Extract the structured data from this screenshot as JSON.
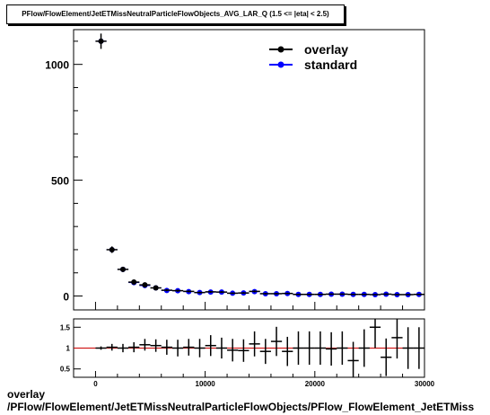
{
  "title": "PFlow/FlowElement/JetETMissNeutralParticleFlowObjects_AVG_LAR_Q (1.5 <= |eta| < 2.5)",
  "xlabel_line1": "overlay",
  "xlabel_line2": "/PFlow/FlowElement/JetETMissNeutralParticleFlowObjects/PFlow_FlowElement_JetETMiss",
  "colors": {
    "overlay": "#000000",
    "standard": "#0000ff",
    "ratio_line": "#cc0000"
  },
  "chart_data": [
    {
      "type": "scatter",
      "title": "PFlow/FlowElement/JetETMissNeutralParticleFlowObjects_AVG_LAR_Q (1.5 <= |eta| < 2.5)",
      "xlim": [
        -2000,
        30000
      ],
      "ylim": [
        -60,
        1150
      ],
      "xticks": [
        0,
        10000,
        20000,
        30000
      ],
      "yticks": [
        0,
        500,
        1000
      ],
      "legend_position": "top-right",
      "bin_width": 1000,
      "x": [
        500,
        1500,
        2500,
        3500,
        4500,
        5500,
        6500,
        7500,
        8500,
        9500,
        10500,
        11500,
        12500,
        13500,
        14500,
        15500,
        16500,
        17500,
        18500,
        19500,
        20500,
        21500,
        22500,
        23500,
        24500,
        25500,
        26500,
        27500,
        28500,
        29500
      ],
      "series": [
        {
          "name": "overlay",
          "values": [
            1100,
            200,
            115,
            60,
            48,
            35,
            25,
            23,
            20,
            15,
            18,
            17,
            12,
            13,
            20,
            10,
            10,
            11,
            7,
            7,
            7,
            8,
            8,
            7,
            7,
            6,
            8,
            6,
            6,
            7
          ],
          "errors": [
            33,
            14,
            11,
            8,
            7,
            6,
            5,
            5,
            4.5,
            4,
            4.2,
            4.1,
            3.5,
            3.6,
            4.5,
            3.2,
            3.2,
            3.3,
            2.6,
            2.6,
            2.6,
            2.8,
            2.8,
            2.6,
            2.6,
            2.4,
            2.8,
            2.4,
            2.4,
            2.6
          ]
        },
        {
          "name": "standard",
          "values": [
            1100,
            200,
            115,
            58,
            45,
            35,
            24,
            23,
            19,
            15,
            17,
            17,
            12,
            13,
            19,
            10,
            10,
            11,
            7,
            7,
            7,
            8,
            8,
            7,
            7,
            6,
            8,
            6,
            6,
            7
          ]
        }
      ]
    },
    {
      "type": "scatter",
      "xlim": [
        -2000,
        30000
      ],
      "ylim": [
        0.3,
        1.7
      ],
      "xticks": [
        0,
        10000,
        20000,
        30000
      ],
      "yticks": [
        0.5,
        1,
        1.5
      ],
      "reference_line": 1,
      "x": [
        500,
        1500,
        2500,
        3500,
        4500,
        5500,
        6500,
        7500,
        8500,
        9500,
        10500,
        11500,
        12500,
        13500,
        14500,
        15500,
        16500,
        17500,
        18500,
        19500,
        20500,
        21500,
        22500,
        23500,
        24500,
        25500,
        26500,
        27500,
        28500,
        29500
      ],
      "values": [
        1.0,
        1.02,
        1.0,
        1.02,
        1.08,
        1.06,
        1.02,
        1.0,
        1.02,
        1.0,
        1.06,
        1.0,
        0.95,
        0.94,
        1.1,
        0.92,
        1.16,
        0.92,
        1.0,
        1.0,
        1.0,
        0.98,
        1.0,
        0.7,
        1.0,
        1.5,
        0.78,
        1.25,
        1.0,
        1.0
      ],
      "errors": [
        0.04,
        0.08,
        0.1,
        0.12,
        0.14,
        0.15,
        0.18,
        0.2,
        0.2,
        0.22,
        0.25,
        0.25,
        0.27,
        0.27,
        0.3,
        0.3,
        0.35,
        0.35,
        0.4,
        0.4,
        0.4,
        0.4,
        0.4,
        0.45,
        0.45,
        0.5,
        0.45,
        0.5,
        0.5,
        0.5
      ]
    }
  ]
}
